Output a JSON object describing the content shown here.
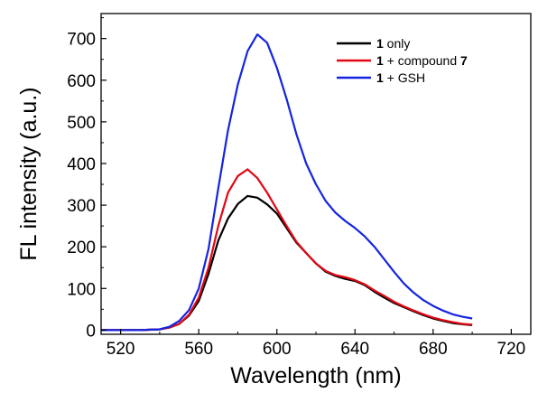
{
  "chart_data": {
    "type": "line",
    "title": "",
    "xlabel": "Wavelength (nm)",
    "ylabel": "FL intensity (a.u.)",
    "xlim": [
      510,
      730
    ],
    "ylim": [
      -10,
      760
    ],
    "xticks": [
      520,
      560,
      600,
      640,
      680,
      720
    ],
    "yticks": [
      0,
      100,
      200,
      300,
      400,
      500,
      600,
      700
    ],
    "legend_position": "top-right",
    "series": [
      {
        "name": "1 only",
        "legend_bold": "1",
        "legend_rest": " only",
        "color": "#000000",
        "x": [
          510,
          530,
          540,
          545,
          550,
          555,
          560,
          565,
          570,
          575,
          580,
          585,
          590,
          595,
          600,
          605,
          610,
          615,
          620,
          625,
          630,
          635,
          640,
          645,
          650,
          655,
          660,
          665,
          670,
          675,
          680,
          685,
          690,
          695,
          700
        ],
        "y": [
          0,
          0,
          2,
          6,
          15,
          35,
          70,
          135,
          215,
          268,
          303,
          322,
          318,
          302,
          280,
          245,
          210,
          185,
          160,
          140,
          130,
          123,
          118,
          108,
          92,
          78,
          65,
          55,
          45,
          36,
          28,
          22,
          17,
          14,
          12
        ]
      },
      {
        "name": "1 + compound 7",
        "legend_bold": "1",
        "legend_rest": " + compound ",
        "legend_bold2": "7",
        "color": "#e30613",
        "x": [
          510,
          530,
          540,
          545,
          550,
          555,
          560,
          565,
          570,
          575,
          580,
          585,
          590,
          595,
          600,
          605,
          610,
          615,
          620,
          625,
          630,
          635,
          640,
          645,
          650,
          655,
          660,
          665,
          670,
          675,
          680,
          685,
          690,
          695,
          700
        ],
        "y": [
          0,
          0,
          2,
          6,
          15,
          37,
          78,
          150,
          250,
          330,
          370,
          386,
          365,
          330,
          290,
          250,
          212,
          185,
          160,
          142,
          132,
          127,
          120,
          110,
          95,
          82,
          68,
          57,
          47,
          38,
          30,
          24,
          19,
          15,
          13
        ]
      },
      {
        "name": "1 + GSH",
        "legend_bold": "1",
        "legend_rest": " + GSH",
        "color": "#1424e0",
        "x": [
          510,
          530,
          540,
          545,
          550,
          555,
          560,
          565,
          570,
          575,
          580,
          585,
          590,
          595,
          600,
          605,
          610,
          615,
          620,
          625,
          630,
          635,
          640,
          645,
          650,
          655,
          660,
          665,
          670,
          675,
          680,
          685,
          690,
          695,
          700
        ],
        "y": [
          0,
          0,
          2,
          8,
          22,
          48,
          100,
          195,
          340,
          480,
          590,
          670,
          710,
          690,
          630,
          555,
          470,
          400,
          350,
          310,
          282,
          262,
          245,
          225,
          200,
          170,
          140,
          112,
          90,
          72,
          58,
          47,
          38,
          32,
          28
        ]
      }
    ]
  }
}
